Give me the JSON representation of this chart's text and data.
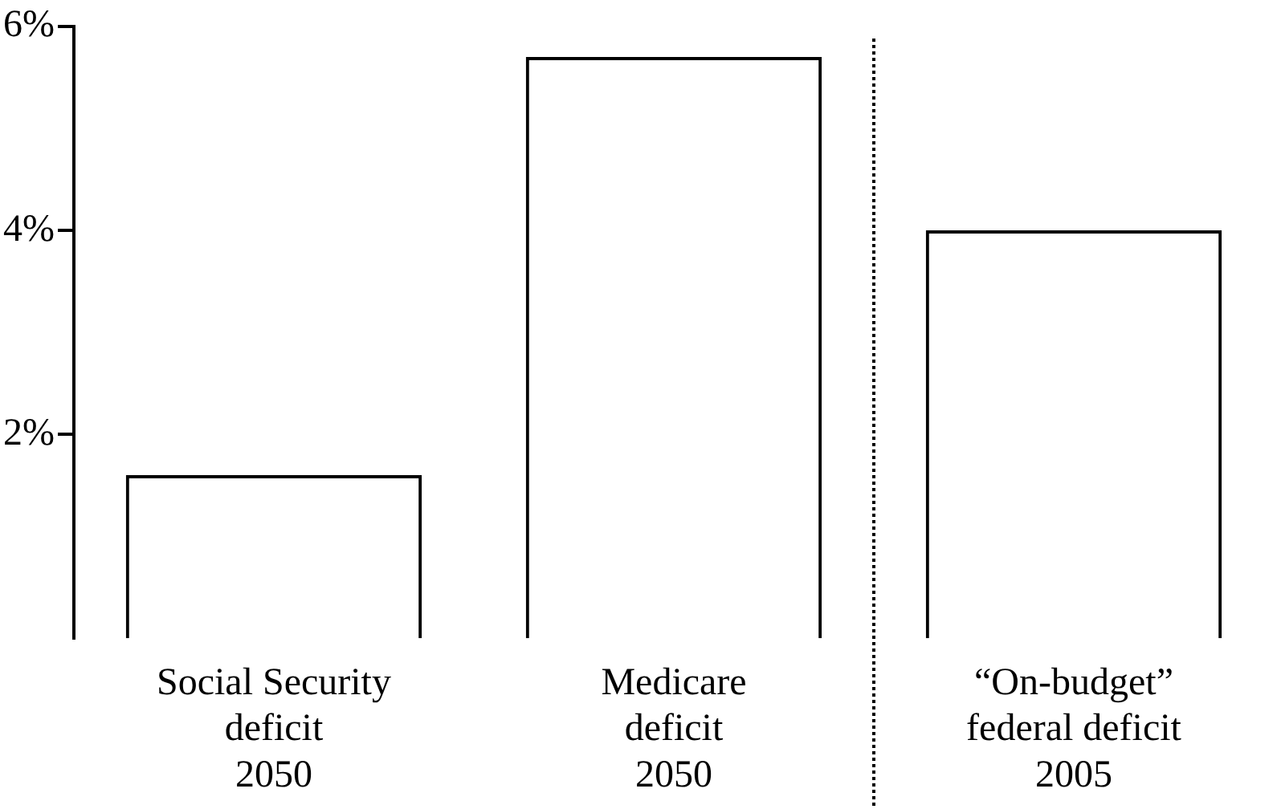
{
  "chart_data": {
    "type": "bar",
    "categories": [
      "Social Security\ndeficit\n2050",
      "Medicare\ndeficit\n2050",
      "“On-budget”\nfederal deficit\n2005"
    ],
    "values": [
      1.6,
      5.7,
      4.0
    ],
    "color": "#000000",
    "ylim": [
      0,
      6
    ],
    "yticks": [
      {
        "value": 2,
        "label": "2%"
      },
      {
        "value": 4,
        "label": "4%"
      },
      {
        "value": 6,
        "label": "6%"
      }
    ],
    "grid": false,
    "legend": false
  }
}
